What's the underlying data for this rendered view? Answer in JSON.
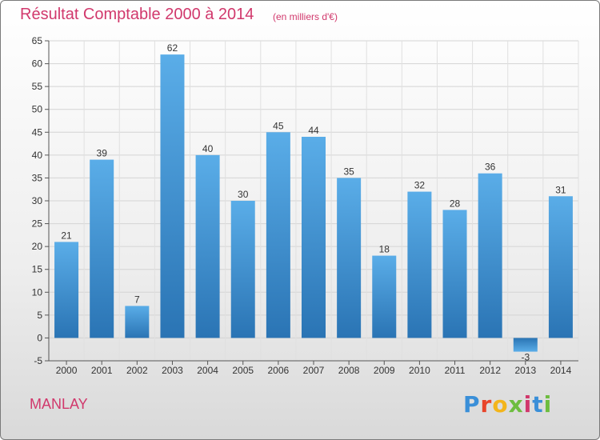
{
  "header": {
    "title": "Résultat Comptable 2000 à 2014",
    "subtitle": "(en milliers d'€)"
  },
  "footer": {
    "commune": "MANLAY",
    "brand": "Proxiti",
    "brand_colors": [
      "#3a8fd8",
      "#e8442a",
      "#f3b51b",
      "#6dbd3f",
      "#d1386c",
      "#3a8fd8",
      "#6dbd3f"
    ]
  },
  "colors": {
    "bar_top": "#5aade8",
    "bar_bottom": "#2a74b4",
    "title": "#d1386c"
  },
  "chart_data": {
    "type": "bar",
    "title": "Résultat Comptable 2000 à 2014",
    "subtitle": "(en milliers d'€)",
    "categories": [
      "2000",
      "2001",
      "2002",
      "2003",
      "2004",
      "2005",
      "2006",
      "2007",
      "2008",
      "2009",
      "2010",
      "2011",
      "2012",
      "2013",
      "2014"
    ],
    "values": [
      21,
      39,
      7,
      62,
      40,
      30,
      45,
      44,
      35,
      18,
      32,
      28,
      36,
      -3,
      31
    ],
    "ylim": [
      -5,
      65
    ],
    "yticks": [
      -5,
      0,
      5,
      10,
      15,
      20,
      25,
      30,
      35,
      40,
      45,
      50,
      55,
      60,
      65
    ],
    "grid": true,
    "xlabel": "",
    "ylabel": ""
  }
}
